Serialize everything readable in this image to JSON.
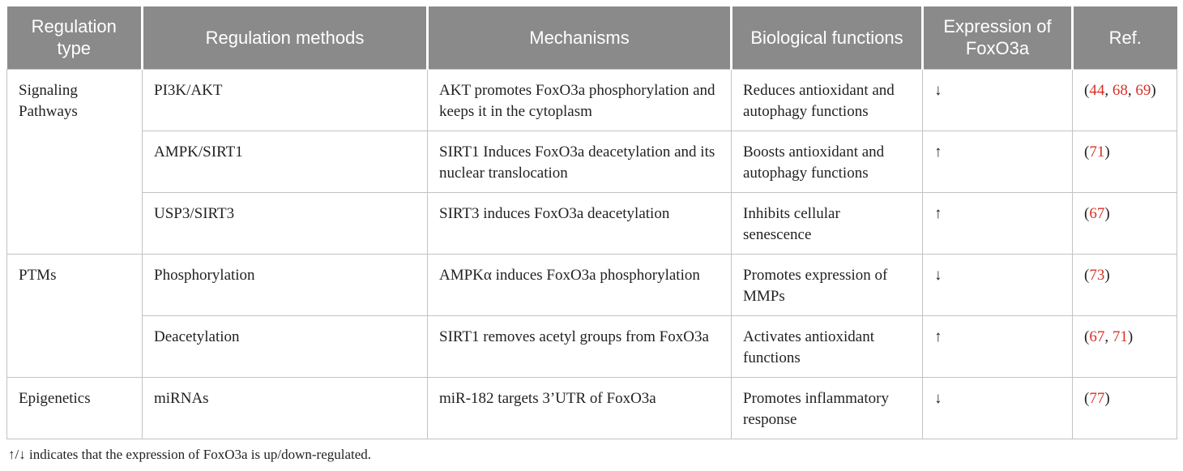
{
  "colors": {
    "header_bg": "#8a8a8a",
    "header_text": "#ffffff",
    "body_text": "#231f20",
    "border": "#c3c3c3",
    "ref_red": "#d93025"
  },
  "table": {
    "headers": [
      "Regulation type",
      "Regulation methods",
      "Mechanisms",
      "Biological functions",
      "Expression of FoxO3a",
      "Ref."
    ],
    "groups": [
      {
        "type": "Signaling Pathways",
        "rows": [
          {
            "method": "PI3K/AKT",
            "mechanism": "AKT promotes FoxO3a phosphorylation and keeps it in the cytoplasm",
            "function": "Reduces antioxidant and autophagy functions",
            "expression": "↓",
            "refs": [
              "44",
              "68",
              "69"
            ]
          },
          {
            "method": "AMPK/SIRT1",
            "mechanism": "SIRT1 Induces FoxO3a deacetylation and its nuclear translocation",
            "function": "Boosts antioxidant and autophagy functions",
            "expression": "↑",
            "refs": [
              "71"
            ]
          },
          {
            "method": "USP3/SIRT3",
            "mechanism": "SIRT3 induces FoxO3a deacetylation",
            "function": "Inhibits cellular senescence",
            "expression": "↑",
            "refs": [
              "67"
            ]
          }
        ]
      },
      {
        "type": "PTMs",
        "rows": [
          {
            "method": "Phosphorylation",
            "mechanism": "AMPKα induces FoxO3a phosphorylation",
            "function": "Promotes expression of MMPs",
            "expression": "↓",
            "refs": [
              "73"
            ]
          },
          {
            "method": "Deacetylation",
            "mechanism": "SIRT1 removes acetyl groups from FoxO3a",
            "function": "Activates antioxidant functions",
            "expression": "↑",
            "refs": [
              "67",
              "71"
            ]
          }
        ]
      },
      {
        "type": "Epigenetics",
        "rows": [
          {
            "method": "miRNAs",
            "mechanism": "miR-182 targets 3’UTR of FoxO3a",
            "function": "Promotes inflammatory response",
            "expression": "↓",
            "refs": [
              "77"
            ]
          }
        ]
      }
    ],
    "footnote": "↑/↓ indicates that the expression of FoxO3a is up/down-regulated."
  }
}
